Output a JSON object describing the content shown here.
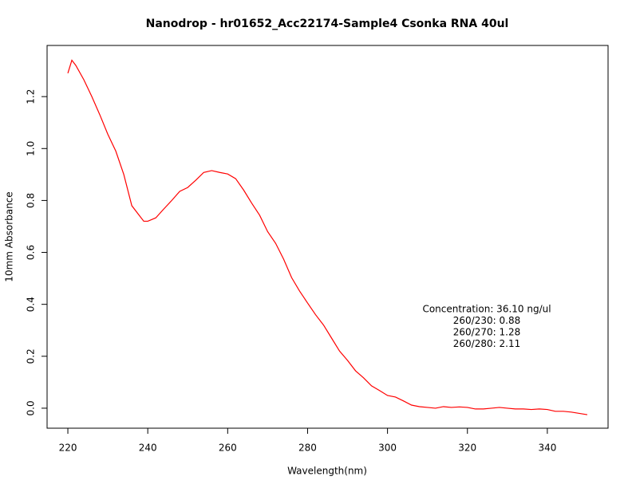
{
  "chart_data": {
    "type": "line",
    "title": "Nanodrop - hr01652_Acc22174-Sample4 Csonka RNA 40ul",
    "x_label": "Wavelength(nm)",
    "y_label": "10mm Absorbance",
    "annotations": [
      "Concentration: 36.10 ng/ul",
      "260/230: 0.88",
      "260/270: 1.28",
      "260/280: 2.11"
    ],
    "xlim": [
      214.8,
      355.2
    ],
    "xticks": [
      220,
      240,
      260,
      280,
      300,
      320,
      340
    ],
    "ylim": [
      -0.077,
      1.397
    ],
    "yticks": [
      {
        "value": 0,
        "label": "0.0"
      },
      0.2,
      0.4,
      0.6,
      0.8,
      {
        "value": 1,
        "label": "1.0"
      },
      1.2
    ],
    "series": [
      {
        "color": "#ff0000",
        "x": [
          220,
          221,
          222,
          224,
          226,
          228,
          230,
          232,
          234,
          236,
          238,
          239,
          240,
          242,
          244,
          246,
          248,
          250,
          252,
          254,
          256,
          258,
          260,
          262,
          264,
          266,
          268,
          270,
          272,
          274,
          276,
          278,
          280,
          282,
          284,
          286,
          288,
          290,
          292,
          294,
          296,
          298,
          300,
          302,
          304,
          306,
          308,
          310,
          312,
          314,
          316,
          318,
          320,
          322,
          324,
          326,
          328,
          330,
          332,
          334,
          336,
          338,
          340,
          342,
          344,
          346,
          348,
          350
        ],
        "values": [
          1.29,
          1.34,
          1.32,
          1.265,
          1.2,
          1.13,
          1.055,
          0.99,
          0.9,
          0.78,
          0.74,
          0.72,
          0.72,
          0.733,
          0.767,
          0.8,
          0.835,
          0.85,
          0.878,
          0.908,
          0.915,
          0.908,
          0.902,
          0.884,
          0.84,
          0.79,
          0.743,
          0.68,
          0.635,
          0.574,
          0.503,
          0.451,
          0.405,
          0.36,
          0.32,
          0.27,
          0.22,
          0.184,
          0.144,
          0.117,
          0.086,
          0.068,
          0.049,
          0.043,
          0.028,
          0.012,
          0.006,
          0.003,
          0,
          0.006,
          0.003,
          0.005,
          0.003,
          -0.003,
          -0.003,
          0,
          0.003,
          0,
          -0.003,
          -0.003,
          -0.005,
          -0.003,
          -0.005,
          -0.012,
          -0.012,
          -0.015,
          -0.02,
          -0.025
        ]
      }
    ]
  }
}
